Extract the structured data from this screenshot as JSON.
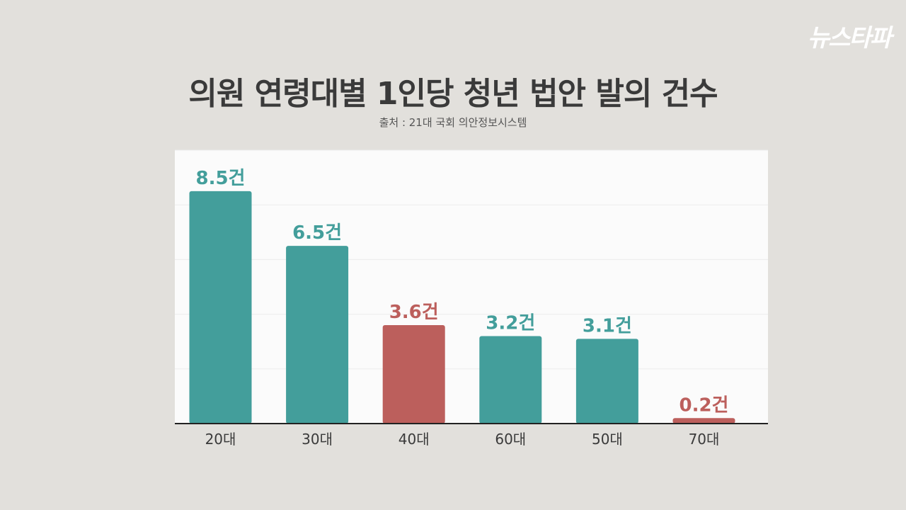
{
  "logo": "뉴스타파",
  "title": "의원 연령대별 1인당 청년 법안 발의 건수",
  "subtitle": "출처 : 21대 국회 의안정보시스템",
  "colors": {
    "teal": "#439e9b",
    "red": "#bc5f5c",
    "background": "#e2e0dc",
    "panel": "#fbfbfb",
    "axis": "#222222",
    "text": "#3a3a3a"
  },
  "chart_data": {
    "type": "bar",
    "title": "의원 연령대별 1인당 청년 법안 발의 건수",
    "xlabel": "",
    "ylabel": "",
    "categories": [
      "20대",
      "30대",
      "40대",
      "60대",
      "50대",
      "70대"
    ],
    "values": [
      8.5,
      6.5,
      3.6,
      3.2,
      3.1,
      0.2
    ],
    "value_labels": [
      "8.5건",
      "6.5건",
      "3.6건",
      "3.2건",
      "3.1건",
      "0.2건"
    ],
    "bar_colors": [
      "teal",
      "teal",
      "red",
      "teal",
      "teal",
      "red"
    ],
    "ylim": [
      0,
      10
    ],
    "grid": true,
    "legend": "none"
  }
}
